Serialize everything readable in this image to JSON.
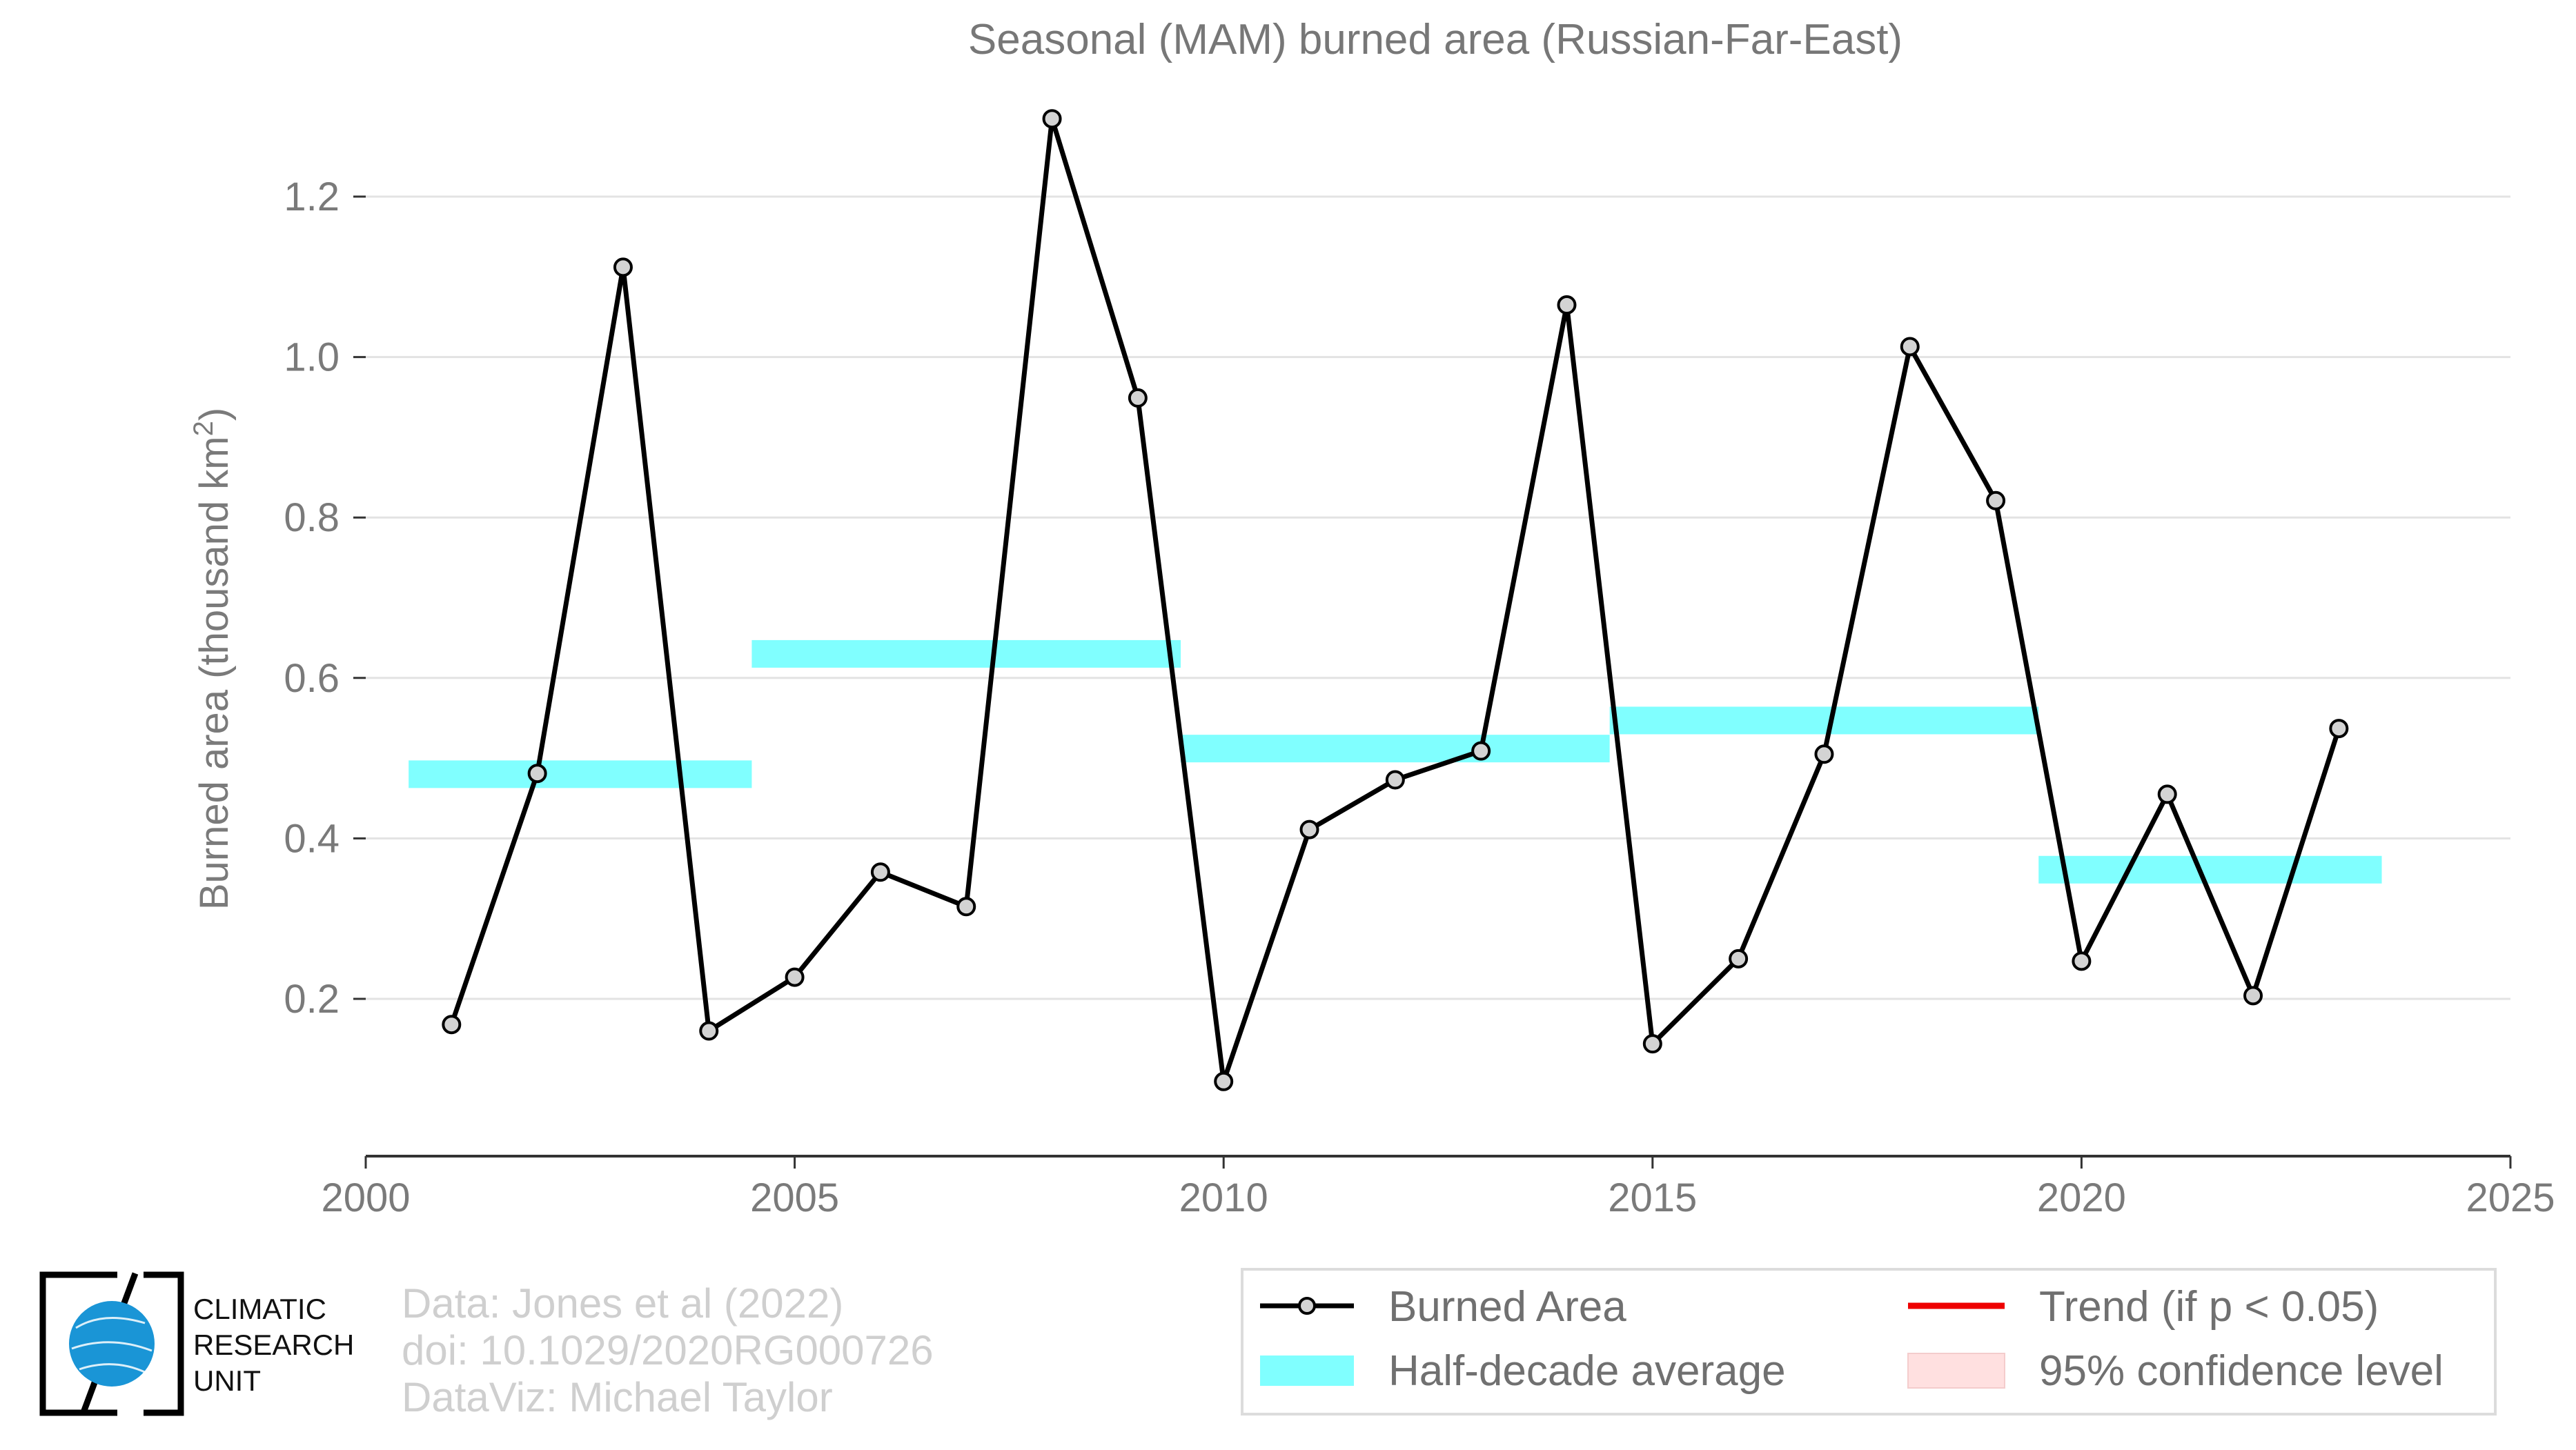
{
  "chart_data": {
    "type": "line",
    "title": "Seasonal (MAM) burned area (Russian-Far-East)",
    "ylabel": "Burned area (thousand km",
    "ylabel_sup": "2",
    "ylabel_close": ")",
    "xlabel": "",
    "xlim": [
      2000,
      2025
    ],
    "ylim": [
      0.0,
      1.35
    ],
    "grid": "horizontal",
    "x_ticks": [
      2000,
      2005,
      2010,
      2015,
      2020,
      2025
    ],
    "y_ticks": [
      "0.2",
      "0.4",
      "0.6",
      "0.8",
      "1.0",
      "1.2"
    ],
    "y_tick_values": [
      0.2,
      0.4,
      0.6,
      0.8,
      1.0,
      1.2
    ],
    "series": [
      {
        "name": "Burned Area",
        "color": "#000000",
        "marker_fill": "#d3d3d3",
        "x": [
          2001,
          2002,
          2003,
          2004,
          2005,
          2006,
          2007,
          2008,
          2009,
          2010,
          2011,
          2012,
          2013,
          2014,
          2015,
          2016,
          2017,
          2018,
          2019,
          2020,
          2021,
          2022,
          2023
        ],
        "y": [
          0.168,
          0.481,
          1.112,
          0.16,
          0.227,
          0.358,
          0.315,
          1.297,
          0.949,
          0.097,
          0.411,
          0.473,
          0.509,
          1.065,
          0.144,
          0.25,
          0.505,
          1.013,
          0.821,
          0.247,
          0.455,
          0.204,
          0.537
        ]
      }
    ],
    "half_decade_average": {
      "name": "Half-decade average",
      "color": "#80ffff",
      "segments": [
        {
          "x_start": 2000.5,
          "x_end": 2004.5,
          "value": 0.48
        },
        {
          "x_start": 2004.5,
          "x_end": 2009.5,
          "value": 0.63
        },
        {
          "x_start": 2009.5,
          "x_end": 2014.5,
          "value": 0.512
        },
        {
          "x_start": 2014.5,
          "x_end": 2019.5,
          "value": 0.547
        },
        {
          "x_start": 2019.5,
          "x_end": 2023.5,
          "value": 0.361
        }
      ]
    },
    "legend": {
      "placement": "bottom-right",
      "items": [
        {
          "label": "Burned Area",
          "kind": "line-marker",
          "color": "#000000"
        },
        {
          "label": "Trend (if p < 0.05)",
          "kind": "line",
          "color": "#ee0000"
        },
        {
          "label": "Half-decade average",
          "kind": "band",
          "color": "#80ffff"
        },
        {
          "label": "95% confidence level",
          "kind": "patch",
          "color": "#ffe0e0"
        }
      ]
    }
  },
  "credits": {
    "line1": "Data: Jones et al (2022)",
    "line2": "doi: 10.1029/2020RG000726",
    "line3": "DataViz: Michael Taylor"
  },
  "logo": {
    "line1": "CLIMATIC",
    "line2": "RESEARCH",
    "line3": "UNIT",
    "globe_color": "#1a95d6"
  }
}
